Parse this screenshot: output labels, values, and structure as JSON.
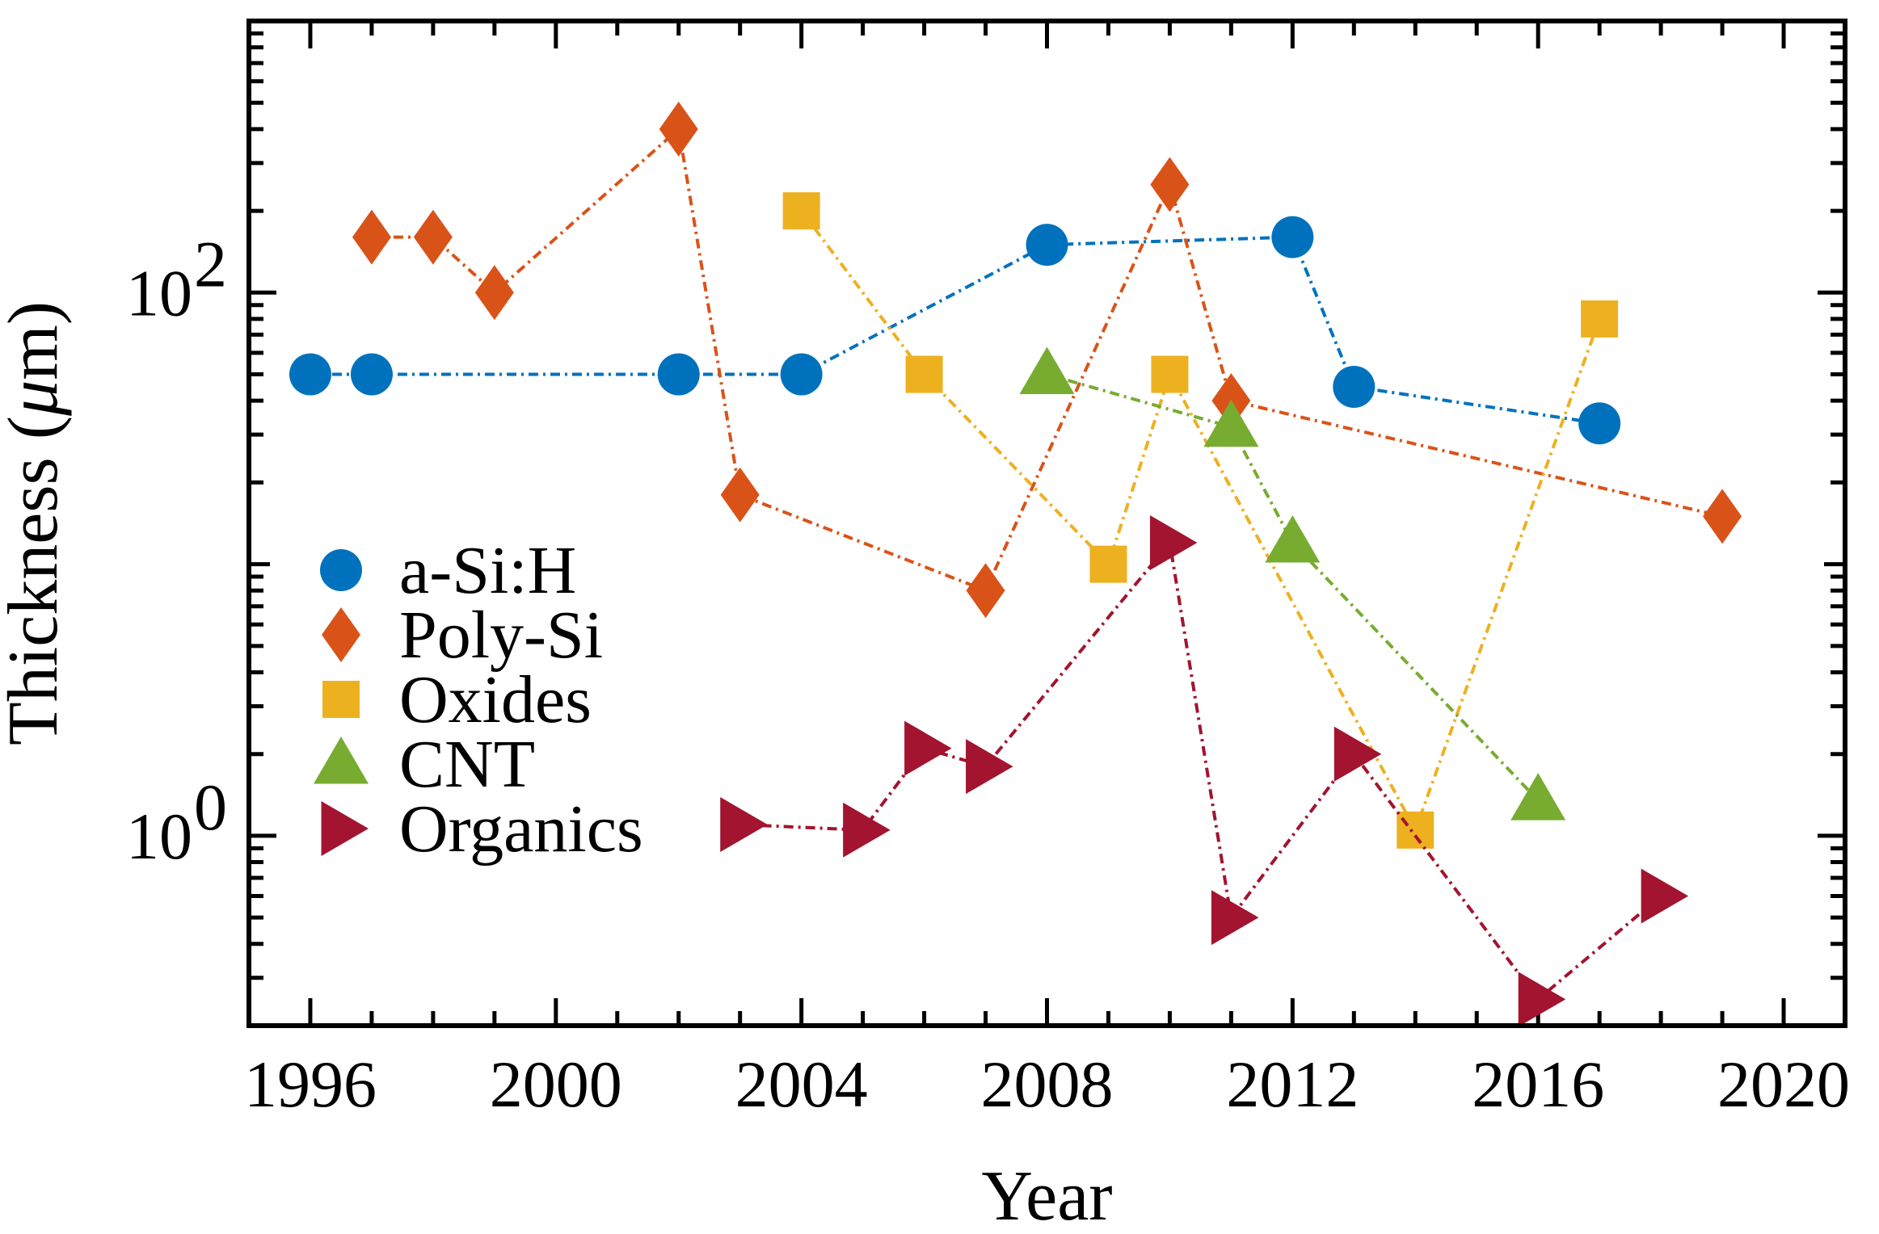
{
  "chart_data": {
    "type": "line",
    "title": "",
    "xlabel": "Year",
    "ylabel": "Thickness (μm)",
    "ylabel_parts": [
      "Thickness (",
      "μ",
      "m)"
    ],
    "yscale": "log",
    "xlim": [
      1995,
      2021
    ],
    "ylim": [
      0.2,
      1000
    ],
    "xticks": [
      1996,
      2000,
      2004,
      2008,
      2012,
      2016,
      2020
    ],
    "xtick_labels": [
      "1996",
      "2000",
      "2004",
      "2008",
      "2012",
      "2016",
      "2020"
    ],
    "yticks": [
      1,
      100
    ],
    "ytick_labels": [
      {
        "base": "10",
        "exp": "0"
      },
      {
        "base": "10",
        "exp": "2"
      }
    ],
    "legend_position": "lower-left",
    "series": [
      {
        "name": "a-Si:H",
        "marker": "circle",
        "color": "#0072BD",
        "x": [
          1996,
          1997,
          2002,
          2004,
          2008,
          2012,
          2013,
          2017
        ],
        "y": [
          50,
          50,
          50,
          50,
          150,
          160,
          45,
          33
        ]
      },
      {
        "name": "Poly-Si",
        "marker": "diamond",
        "color": "#D95319",
        "x": [
          1997,
          1998,
          1999,
          2002,
          2003,
          2007,
          2010,
          2011,
          2019
        ],
        "y": [
          160,
          160,
          100,
          400,
          18,
          8,
          250,
          40,
          15
        ]
      },
      {
        "name": "Oxides",
        "marker": "square",
        "color": "#EDB120",
        "x": [
          2004,
          2006,
          2009,
          2010,
          2014,
          2017
        ],
        "y": [
          200,
          50,
          10,
          50,
          1.05,
          80
        ]
      },
      {
        "name": "CNT",
        "marker": "triangle-up",
        "color": "#77AC30",
        "x": [
          2008,
          2011,
          2012,
          2016
        ],
        "y": [
          50,
          32,
          12,
          1.35
        ]
      },
      {
        "name": "Organics",
        "marker": "triangle-right",
        "color": "#A2142F",
        "x": [
          2003,
          2005,
          2006,
          2007,
          2010,
          2011,
          2013,
          2016,
          2018
        ],
        "y": [
          1.1,
          1.05,
          2.1,
          1.8,
          12,
          0.5,
          2,
          0.25,
          0.6
        ]
      }
    ]
  }
}
